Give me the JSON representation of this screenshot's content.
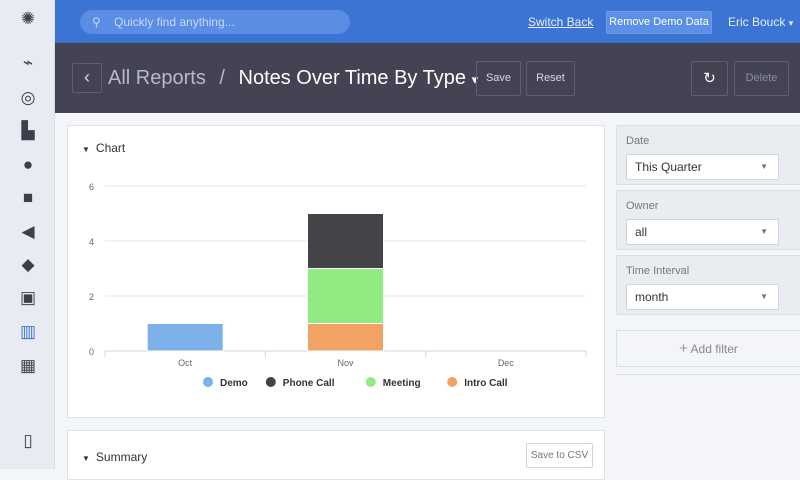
{
  "sidebar": {
    "items": [
      "logo",
      "activity",
      "target",
      "buildings",
      "contacts",
      "briefcase",
      "megaphone",
      "tag",
      "inbox",
      "reports",
      "dashboard",
      "guide"
    ]
  },
  "topbar": {
    "search_placeholder": "Quickly find anything...",
    "switch_back": "Switch Back",
    "remove_demo": "Remove Demo Data",
    "user": "Eric Bouck",
    "user_caret": "▾"
  },
  "header": {
    "back": "‹",
    "breadcrumb_root": "All Reports",
    "separator": "/",
    "title": "Notes Over Time By Type",
    "title_caret": "▾",
    "save": "Save",
    "reset": "Reset",
    "refresh": "↻",
    "delete": "Delete"
  },
  "chart_card": {
    "toggle": "▼",
    "title": "Chart"
  },
  "summary_card": {
    "toggle": "▼",
    "title": "Summary",
    "save_csv": "Save to CSV"
  },
  "filters": [
    {
      "label": "Date",
      "value": "This Quarter"
    },
    {
      "label": "Owner",
      "value": "all"
    },
    {
      "label": "Time Interval",
      "value": "month"
    }
  ],
  "add_filter": {
    "icon": "+",
    "label": "Add filter"
  },
  "chart_data": {
    "type": "bar",
    "stacked": true,
    "categories": [
      "Oct",
      "Nov",
      "Dec"
    ],
    "series": [
      {
        "name": "Demo",
        "color": "#7cb0e8",
        "values": [
          1,
          0,
          0
        ]
      },
      {
        "name": "Intro Call",
        "color": "#f2a263",
        "values": [
          0,
          1,
          0
        ]
      },
      {
        "name": "Meeting",
        "color": "#90ec80",
        "values": [
          0,
          2,
          0
        ]
      },
      {
        "name": "Phone Call",
        "color": "#434348",
        "values": [
          0,
          2,
          0
        ]
      }
    ],
    "legend_order": [
      "Demo",
      "Phone Call",
      "Meeting",
      "Intro Call"
    ],
    "yticks": [
      0,
      2,
      4,
      6
    ],
    "ylim": [
      0,
      6
    ],
    "grid": true,
    "legend": "bottom"
  }
}
